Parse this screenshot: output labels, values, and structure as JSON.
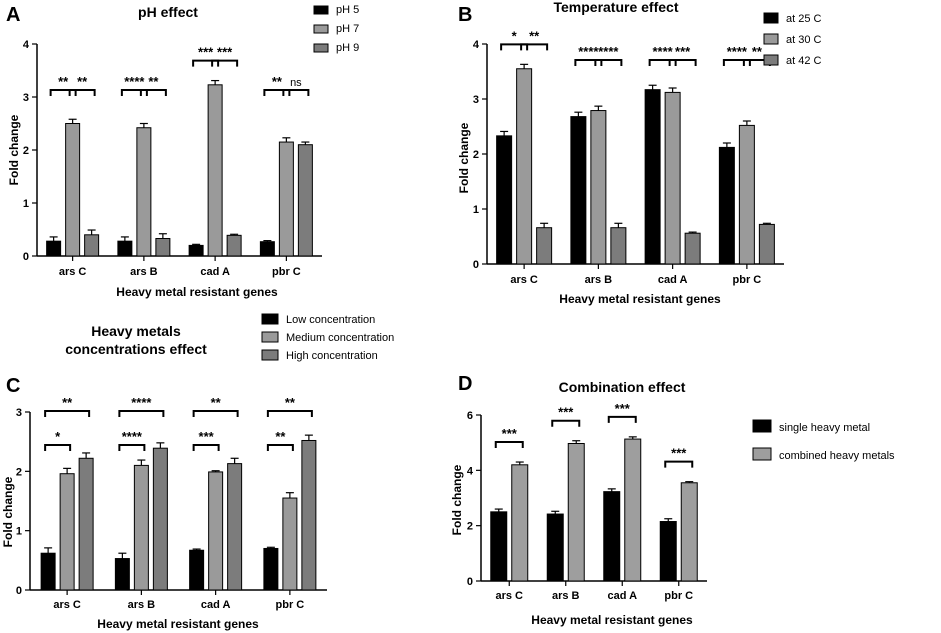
{
  "figure": {
    "panels": [
      "A",
      "B",
      "C",
      "D"
    ]
  },
  "colors": {
    "dark": "#000000",
    "medium": "#9a9a9a",
    "light": "#7c7c7c",
    "combined": "#9e9e9e"
  },
  "chart_data": [
    {
      "id": "A",
      "type": "bar",
      "title": "pH effect",
      "xlabel": "Heavy metal resistant genes",
      "ylabel": "Fold change",
      "ylim": [
        0,
        4
      ],
      "yticks": [
        "0",
        "1",
        "2",
        "3",
        "4"
      ],
      "categories": [
        "ars C",
        "ars B",
        "cad A",
        "pbr C"
      ],
      "series": [
        {
          "name": "pH 5",
          "values": [
            0.28,
            0.28,
            0.2,
            0.27
          ],
          "errors": [
            0.08,
            0.08,
            0.02,
            0.02
          ]
        },
        {
          "name": "pH 7",
          "values": [
            2.5,
            2.42,
            3.23,
            2.15
          ],
          "errors": [
            0.08,
            0.08,
            0.08,
            0.08
          ]
        },
        {
          "name": "pH 9",
          "values": [
            0.4,
            0.33,
            0.39,
            2.1
          ],
          "errors": [
            0.09,
            0.09,
            0.02,
            0.05
          ]
        }
      ],
      "significance": [
        {
          "category": 0,
          "from": 0,
          "to": 1,
          "label": "**",
          "level": 0
        },
        {
          "category": 0,
          "from": 1,
          "to": 2,
          "label": "**",
          "level": 0
        },
        {
          "category": 1,
          "from": 0,
          "to": 1,
          "label": "****",
          "level": 0
        },
        {
          "category": 1,
          "from": 1,
          "to": 2,
          "label": "**",
          "level": 0
        },
        {
          "category": 2,
          "from": 0,
          "to": 1,
          "label": "***",
          "level": 0
        },
        {
          "category": 2,
          "from": 1,
          "to": 2,
          "label": "***",
          "level": 0
        },
        {
          "category": 3,
          "from": 0,
          "to": 1,
          "label": "**",
          "level": 0
        },
        {
          "category": 3,
          "from": 1,
          "to": 2,
          "label": "ns",
          "level": 0
        }
      ]
    },
    {
      "id": "B",
      "type": "bar",
      "title": "Temperature effect",
      "xlabel": "Heavy metal resistant genes",
      "ylabel": "Fold change",
      "ylim": [
        0,
        4
      ],
      "yticks": [
        "0",
        "1",
        "2",
        "3",
        "4"
      ],
      "categories": [
        "ars C",
        "ars B",
        "cad A",
        "pbr C"
      ],
      "series": [
        {
          "name": "at 25 C",
          "values": [
            2.33,
            2.68,
            3.17,
            2.12
          ],
          "errors": [
            0.08,
            0.08,
            0.08,
            0.08
          ]
        },
        {
          "name": "at 30 C",
          "values": [
            3.55,
            2.79,
            3.12,
            2.52
          ],
          "errors": [
            0.08,
            0.08,
            0.08,
            0.08
          ]
        },
        {
          "name": "at 42 C",
          "values": [
            0.66,
            0.66,
            0.56,
            0.72
          ],
          "errors": [
            0.08,
            0.08,
            0.02,
            0.02
          ]
        }
      ],
      "significance": [
        {
          "category": 0,
          "from": 0,
          "to": 1,
          "label": "*",
          "level": 0
        },
        {
          "category": 0,
          "from": 1,
          "to": 2,
          "label": "**",
          "level": 0
        },
        {
          "category": 1,
          "from": 0,
          "to": 1,
          "label": "****",
          "level": 0
        },
        {
          "category": 1,
          "from": 1,
          "to": 2,
          "label": "****",
          "level": 0
        },
        {
          "category": 2,
          "from": 0,
          "to": 1,
          "label": "****",
          "level": 0
        },
        {
          "category": 2,
          "from": 1,
          "to": 2,
          "label": "***",
          "level": 0
        },
        {
          "category": 3,
          "from": 0,
          "to": 1,
          "label": "****",
          "level": 0
        },
        {
          "category": 3,
          "from": 1,
          "to": 2,
          "label": "**",
          "level": 0
        }
      ]
    },
    {
      "id": "C",
      "type": "bar",
      "title": "Heavy metals concentrations effect",
      "title_lines": [
        "Heavy metals",
        "concentrations effect"
      ],
      "xlabel": "Heavy metal resistant genes",
      "ylabel": "Fold change",
      "ylim": [
        0,
        3
      ],
      "yticks": [
        "0",
        "1",
        "2",
        "3"
      ],
      "categories": [
        "ars C",
        "ars B",
        "cad A",
        "pbr C"
      ],
      "series": [
        {
          "name": "Low concentration",
          "values": [
            0.62,
            0.53,
            0.67,
            0.7
          ],
          "errors": [
            0.09,
            0.09,
            0.02,
            0.02
          ]
        },
        {
          "name": "Medium concentration",
          "values": [
            1.96,
            2.1,
            1.99,
            1.55
          ],
          "errors": [
            0.09,
            0.09,
            0.02,
            0.09
          ]
        },
        {
          "name": "High concentration",
          "values": [
            2.22,
            2.39,
            2.13,
            2.52
          ],
          "errors": [
            0.09,
            0.09,
            0.09,
            0.09
          ]
        }
      ],
      "significance": [
        {
          "category": 0,
          "from": 0,
          "to": 1,
          "label": "*",
          "level": 0
        },
        {
          "category": 0,
          "from": 0,
          "to": 2,
          "label": "**",
          "level": 1
        },
        {
          "category": 1,
          "from": 0,
          "to": 1,
          "label": "****",
          "level": 0
        },
        {
          "category": 1,
          "from": 0,
          "to": 2,
          "label": "****",
          "level": 1
        },
        {
          "category": 2,
          "from": 0,
          "to": 1,
          "label": "***",
          "level": 0
        },
        {
          "category": 2,
          "from": 0,
          "to": 2,
          "label": "**",
          "level": 1
        },
        {
          "category": 3,
          "from": 0,
          "to": 1,
          "label": "**",
          "level": 0
        },
        {
          "category": 3,
          "from": 0,
          "to": 2,
          "label": "**",
          "level": 1
        }
      ]
    },
    {
      "id": "D",
      "type": "bar",
      "title": "Combination effect",
      "xlabel": "Heavy metal resistant genes",
      "ylabel": "Fold change",
      "ylim": [
        0,
        6
      ],
      "yticks": [
        "0",
        "2",
        "4",
        "6"
      ],
      "categories": [
        "ars C",
        "ars B",
        "cad A",
        "pbr C"
      ],
      "series": [
        {
          "name": "single heavy metal",
          "values": [
            2.5,
            2.42,
            3.23,
            2.15
          ],
          "errors": [
            0.1,
            0.1,
            0.1,
            0.1
          ]
        },
        {
          "name": "combined heavy metals",
          "values": [
            4.2,
            4.97,
            5.13,
            3.55
          ],
          "errors": [
            0.1,
            0.1,
            0.08,
            0.04
          ]
        }
      ],
      "significance": [
        {
          "category": 0,
          "from": 0,
          "to": 1,
          "label": "***",
          "level": 0
        },
        {
          "category": 1,
          "from": 0,
          "to": 1,
          "label": "***",
          "level": 0
        },
        {
          "category": 2,
          "from": 0,
          "to": 1,
          "label": "***",
          "level": 0
        },
        {
          "category": 3,
          "from": 0,
          "to": 1,
          "label": "***",
          "level": 0
        }
      ]
    }
  ]
}
